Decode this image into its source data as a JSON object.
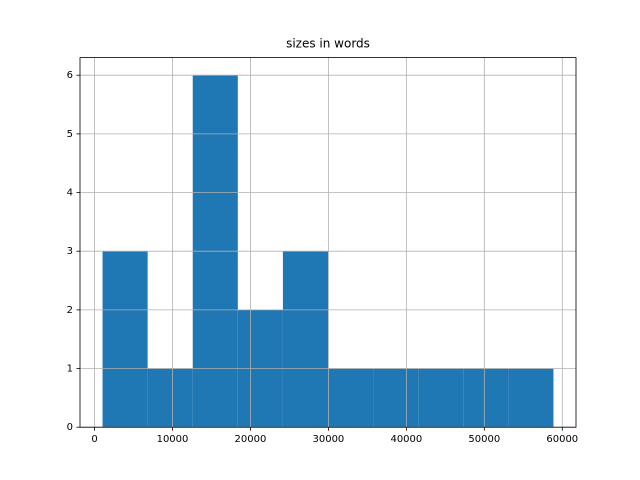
{
  "chart_data": {
    "type": "histogram",
    "title": "sizes in words",
    "bins": [
      1028,
      6812,
      12596,
      18380,
      24164,
      29948,
      35732,
      41516,
      47300,
      53084,
      58868
    ],
    "values": [
      3,
      1,
      6,
      2,
      3,
      1,
      1,
      1,
      1,
      1
    ],
    "color": "#1f77b4",
    "xlim": [
      -1864,
      61760
    ],
    "xticks": [
      0,
      10000,
      20000,
      30000,
      40000,
      50000,
      60000
    ],
    "ylim": [
      0,
      6.3
    ],
    "yticks": [
      0,
      1,
      2,
      3,
      4,
      5,
      6
    ],
    "grid": true
  }
}
